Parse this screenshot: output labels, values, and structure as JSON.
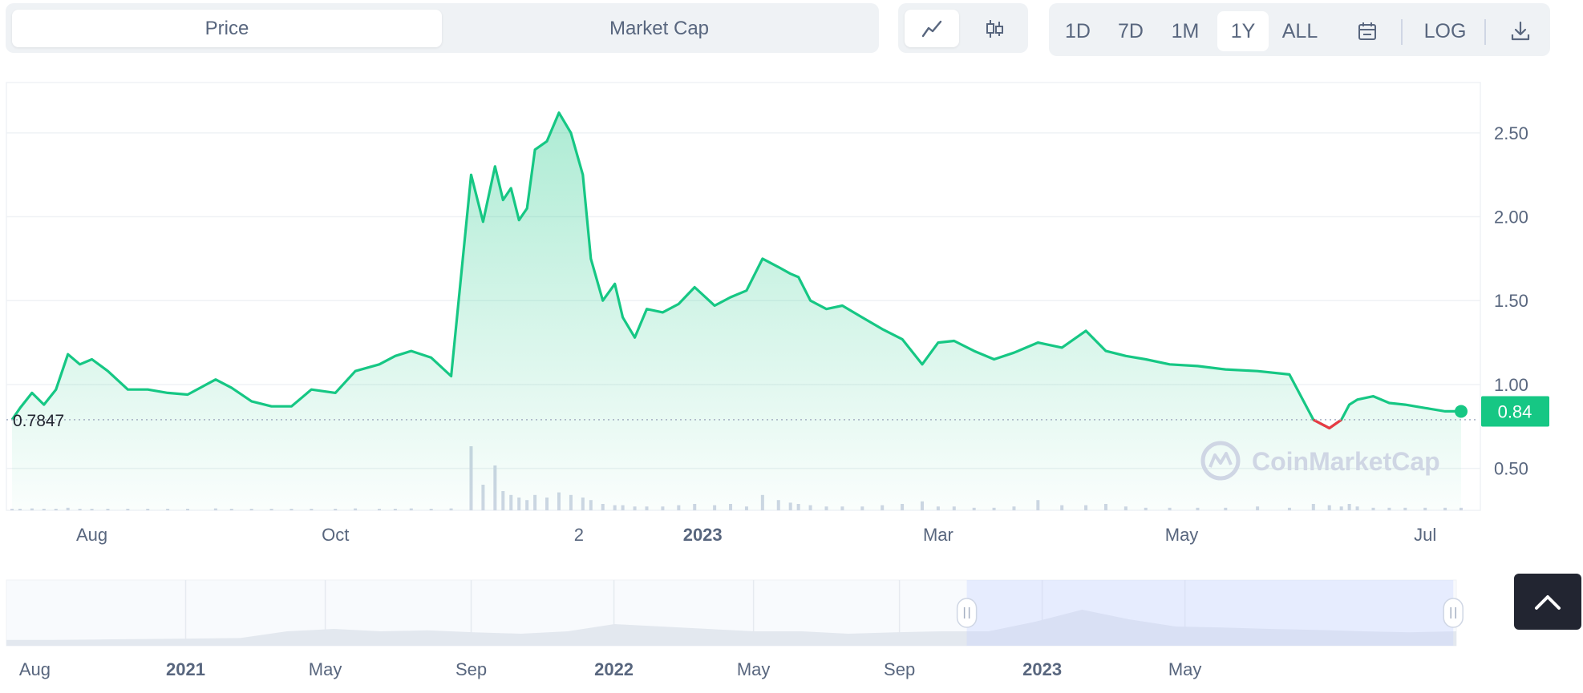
{
  "tabs": {
    "price": "Price",
    "market_cap": "Market Cap",
    "active": "price"
  },
  "chart_type_toggle": {
    "line_icon": "line-chart-icon",
    "candle_icon": "candlestick-icon",
    "active": "line"
  },
  "ranges": {
    "items": [
      "1D",
      "7D",
      "1M",
      "1Y",
      "ALL"
    ],
    "active": "1Y",
    "log_label": "LOG",
    "calendar_icon": "calendar-icon",
    "download_icon": "download-icon"
  },
  "chart_data": {
    "type": "area",
    "y_ticks": [
      "0.50",
      "1.00",
      "1.50",
      "2.00",
      "2.50"
    ],
    "ylim": [
      0.25,
      2.8
    ],
    "x_ticks": [
      "Aug",
      "Oct",
      "2",
      "2023",
      "Mar",
      "May",
      "Jul"
    ],
    "start_price_label": "0.7847",
    "current_price_label": "0.84",
    "watermark": "CoinMarketCap",
    "colors": {
      "line": "#16c784",
      "down": "#ea3943",
      "accent": "#16c784"
    },
    "series": [
      {
        "x": [
          "2022-07-12",
          "2022-07-14",
          "2022-07-17",
          "2022-07-20",
          "2022-07-23",
          "2022-07-26",
          "2022-07-29",
          "2022-08-01",
          "2022-08-05",
          "2022-08-10",
          "2022-08-15",
          "2022-08-20",
          "2022-08-25",
          "2022-09-01",
          "2022-09-05",
          "2022-09-10",
          "2022-09-15",
          "2022-09-20",
          "2022-09-25",
          "2022-10-01",
          "2022-10-06",
          "2022-10-12",
          "2022-10-16",
          "2022-10-20",
          "2022-10-25",
          "2022-10-30",
          "2022-11-04",
          "2022-11-07",
          "2022-11-10",
          "2022-11-12",
          "2022-11-14",
          "2022-11-16",
          "2022-11-18",
          "2022-11-20",
          "2022-11-23",
          "2022-11-26",
          "2022-11-29",
          "2022-12-02",
          "2022-12-04",
          "2022-12-07",
          "2022-12-10",
          "2022-12-12",
          "2022-12-15",
          "2022-12-18",
          "2022-12-22",
          "2022-12-26",
          "2022-12-30",
          "2023-01-04",
          "2023-01-08",
          "2023-01-12",
          "2023-01-16",
          "2023-01-20",
          "2023-01-23",
          "2023-01-25",
          "2023-01-28",
          "2023-02-01",
          "2023-02-05",
          "2023-02-10",
          "2023-02-15",
          "2023-02-20",
          "2023-02-25",
          "2023-03-01",
          "2023-03-05",
          "2023-03-10",
          "2023-03-15",
          "2023-03-20",
          "2023-03-26",
          "2023-04-01",
          "2023-04-07",
          "2023-04-12",
          "2023-04-17",
          "2023-04-22",
          "2023-04-28",
          "2023-05-05",
          "2023-05-12",
          "2023-05-20",
          "2023-05-28",
          "2023-06-03",
          "2023-06-07",
          "2023-06-10",
          "2023-06-12",
          "2023-06-14",
          "2023-06-18",
          "2023-06-22",
          "2023-06-26",
          "2023-07-01",
          "2023-07-06",
          "2023-07-10"
        ],
        "values": [
          0.79,
          0.86,
          0.95,
          0.88,
          0.97,
          1.18,
          1.12,
          1.15,
          1.08,
          0.97,
          0.97,
          0.95,
          0.94,
          1.03,
          0.98,
          0.9,
          0.87,
          0.87,
          0.97,
          0.95,
          1.08,
          1.12,
          1.17,
          1.2,
          1.16,
          1.05,
          2.25,
          1.97,
          2.3,
          2.1,
          2.17,
          1.98,
          2.05,
          2.4,
          2.45,
          2.62,
          2.5,
          2.25,
          1.75,
          1.5,
          1.6,
          1.4,
          1.28,
          1.45,
          1.43,
          1.48,
          1.58,
          1.47,
          1.52,
          1.56,
          1.75,
          1.7,
          1.66,
          1.64,
          1.5,
          1.45,
          1.47,
          1.4,
          1.33,
          1.27,
          1.12,
          1.25,
          1.26,
          1.2,
          1.15,
          1.19,
          1.25,
          1.22,
          1.32,
          1.2,
          1.17,
          1.15,
          1.12,
          1.11,
          1.09,
          1.08,
          1.06,
          0.79,
          0.74,
          0.79,
          0.88,
          0.91,
          0.93,
          0.89,
          0.88,
          0.86,
          0.84,
          0.84
        ]
      }
    ],
    "volume": [
      0.01,
      0.01,
      0.015,
      0.01,
      0.01,
      0.02,
      0.01,
      0.01,
      0.01,
      0.012,
      0.01,
      0.01,
      0.01,
      0.015,
      0.01,
      0.01,
      0.01,
      0.01,
      0.012,
      0.01,
      0.015,
      0.01,
      0.01,
      0.015,
      0.01,
      0.015,
      0.5,
      0.2,
      0.35,
      0.15,
      0.12,
      0.1,
      0.08,
      0.12,
      0.1,
      0.14,
      0.12,
      0.1,
      0.08,
      0.05,
      0.04,
      0.04,
      0.03,
      0.03,
      0.03,
      0.04,
      0.05,
      0.04,
      0.05,
      0.03,
      0.12,
      0.08,
      0.06,
      0.05,
      0.04,
      0.03,
      0.03,
      0.03,
      0.04,
      0.05,
      0.07,
      0.03,
      0.03,
      0.02,
      0.02,
      0.03,
      0.08,
      0.04,
      0.04,
      0.05,
      0.03,
      0.02,
      0.02,
      0.02,
      0.02,
      0.03,
      0.02,
      0.05,
      0.04,
      0.03,
      0.05,
      0.03,
      0.02,
      0.02,
      0.02,
      0.02,
      0.02,
      0.02
    ]
  },
  "navigator": {
    "x_ticks": [
      "Aug",
      "2021",
      "May",
      "Sep",
      "2022",
      "May",
      "Sep",
      "2023",
      "May"
    ],
    "values": [
      0.12,
      0.12,
      0.13,
      0.14,
      0.15,
      0.16,
      0.3,
      0.35,
      0.3,
      0.32,
      0.28,
      0.25,
      0.3,
      0.45,
      0.4,
      0.35,
      0.3,
      0.3,
      0.25,
      0.28,
      0.3,
      0.3,
      0.5,
      0.75,
      0.55,
      0.4,
      0.38,
      0.35,
      0.33,
      0.3,
      0.28,
      0.3
    ],
    "selected_range": [
      0.6624,
      0.9979
    ]
  }
}
